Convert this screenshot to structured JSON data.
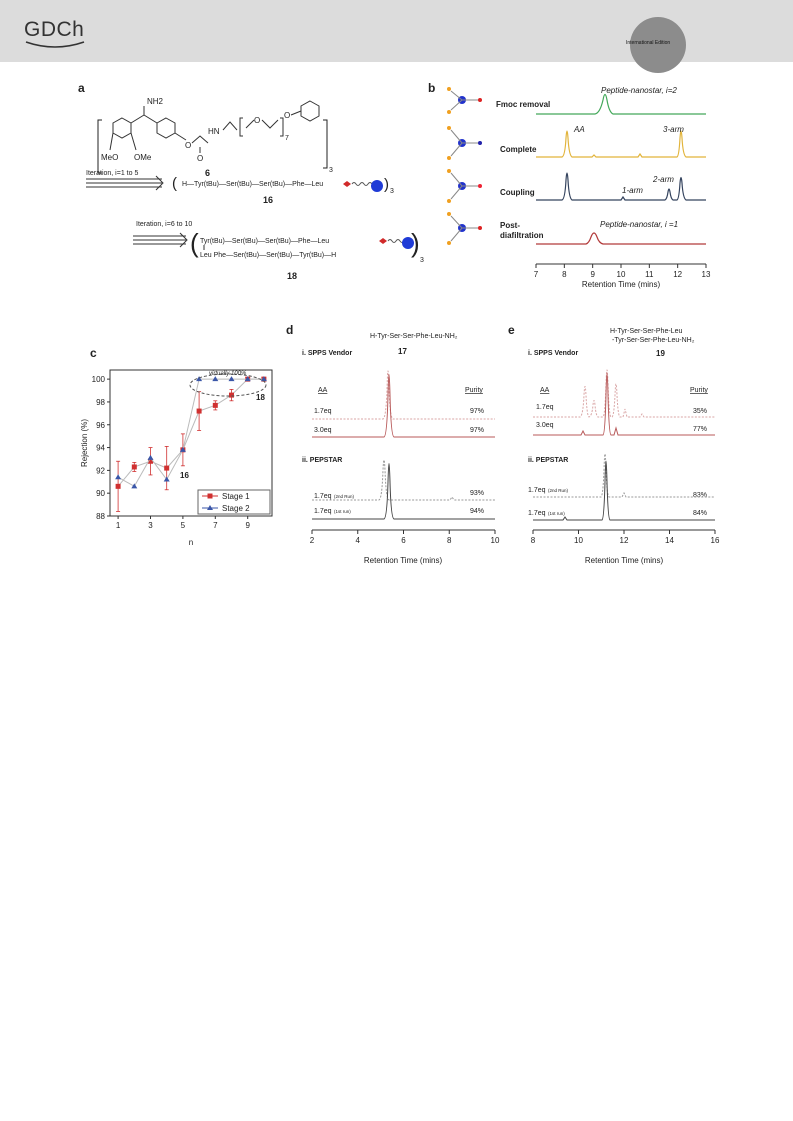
{
  "header": {
    "journal_logo": "GDCh",
    "edition_label": "International Edition"
  },
  "figure": {
    "panel_a": {
      "label": "a",
      "nh2": "NH2",
      "meo_left": "MeO",
      "ome_right": "OMe",
      "hn": "HN",
      "o_chain": "O",
      "o_end": "O",
      "o_carbonyl": "O",
      "sub_7": "7",
      "sub_3": "3",
      "compound_6": "6",
      "iteration_1": "Iteration, i=1 to 5",
      "sequence_16": "H—Tyr(tBu)—Ser(tBu)—Ser(tBu)—Phe—Leu",
      "compound_16": "16",
      "iteration_2": "Iteration, i=6 to 10",
      "sequence_18_top": "Tyr(tBu)—Ser(tBu)—Ser(tBu)—Phe—Leu",
      "sequence_18_bottom": "Leu Phe—Ser(tBu)—Ser(tBu)—Tyr(tBu)—H",
      "compound_18": "18"
    },
    "panel_b": {
      "label": "b",
      "x_axis_label": "Retention Time (mins)",
      "x_ticks": [
        "7",
        "8",
        "9",
        "10",
        "11",
        "12",
        "13"
      ],
      "traces": [
        {
          "label": "Fmoc removal",
          "annotation": "Peptide-nanostar, i=2",
          "color": "#43a85a"
        },
        {
          "label": "Complete",
          "annotation_aa": "AA",
          "annotation_arm": "3-arm",
          "color": "#e2b43b"
        },
        {
          "label": "Coupling",
          "annotation_2arm": "2-arm",
          "annotation_1arm": "1-arm",
          "color": "#34435e"
        },
        {
          "label_line1": "Post-",
          "label_line2": "diafiltration",
          "annotation": "Peptide-nanostar, i =1",
          "color": "#b23a3a"
        }
      ]
    },
    "panel_c": {
      "label": "c",
      "ylabel": "Rejection (%)",
      "xlabel": "n",
      "annotation_virtual": "virtually 100%",
      "annotation_16": "16",
      "annotation_18": "18",
      "legend_stage1": "Stage 1",
      "legend_stage2": "Stage 2"
    },
    "panel_d": {
      "label": "d",
      "title_line1": "H-Tyr-Ser-Ser-Phe-Leu-NH₂",
      "compound": "17",
      "section1": "i. SPPS Vendor",
      "section2": "ii. PEPSTAR",
      "col_aa": "AA",
      "col_purity": "Purity",
      "rows": [
        {
          "eq": "1.7eq",
          "note": "",
          "purity": "97%"
        },
        {
          "eq": "3.0eq",
          "note": "",
          "purity": "97%"
        },
        {
          "eq": "1.7eq",
          "note": "(2nd Run)",
          "purity": "93%"
        },
        {
          "eq": "1.7eq",
          "note": "(1st run)",
          "purity": "94%"
        }
      ],
      "x_axis_label": "Retention Time (mins)",
      "x_ticks": [
        "2",
        "4",
        "6",
        "8",
        "10"
      ]
    },
    "panel_e": {
      "label": "e",
      "title_line1": "H-Tyr-Ser-Ser-Phe-Leu",
      "title_line2": "-Tyr-Ser-Ser-Phe-Leu-NH₂",
      "compound": "19",
      "section1": "i. SPPS Vendor",
      "section2": "ii. PEPSTAR",
      "col_aa": "AA",
      "col_purity": "Purity",
      "rows": [
        {
          "eq": "1.7eq",
          "note": "",
          "purity": "35%"
        },
        {
          "eq": "3.0eq",
          "note": "",
          "purity": "77%"
        },
        {
          "eq": "1.7eq",
          "note": "(2nd Run)",
          "purity": "83%"
        },
        {
          "eq": "1.7eq",
          "note": "(1st run)",
          "purity": "84%"
        }
      ],
      "x_axis_label": "Retention Time (mins)",
      "x_ticks": [
        "8",
        "10",
        "12",
        "14",
        "16"
      ]
    }
  },
  "chart_data": {
    "type": "scatter",
    "xlabel": "n",
    "ylabel": "Rejection (%)",
    "xlim": [
      0.5,
      10.5
    ],
    "ylim": [
      88,
      100.8
    ],
    "x_tick_labels": [
      "1",
      "3",
      "5",
      "7",
      "9"
    ],
    "y_tick_labels": [
      "88",
      "90",
      "92",
      "94",
      "96",
      "98",
      "100"
    ],
    "legend_position": "bottom-right",
    "series": [
      {
        "name": "Stage 1",
        "color": "#d03030",
        "marker": "square",
        "x": [
          1,
          2,
          3,
          4,
          5,
          6,
          7,
          8,
          9,
          10
        ],
        "y": [
          90.6,
          92.3,
          92.8,
          92.2,
          93.8,
          97.2,
          97.7,
          98.6,
          100.0,
          100.0
        ],
        "err": [
          2.2,
          0.4,
          1.2,
          1.9,
          1.4,
          1.7,
          0.4,
          0.5,
          0,
          0
        ]
      },
      {
        "name": "Stage 2",
        "color": "#3a56a8",
        "marker": "triangle",
        "x": [
          1,
          2,
          3,
          4,
          5,
          6,
          7,
          8,
          9,
          10
        ],
        "y": [
          91.4,
          90.6,
          93.1,
          91.2,
          93.8,
          100.0,
          100.0,
          100.0,
          100.0,
          100.0
        ],
        "err": [
          0,
          0,
          0,
          0,
          0,
          0,
          0,
          0,
          0,
          0
        ]
      }
    ]
  }
}
